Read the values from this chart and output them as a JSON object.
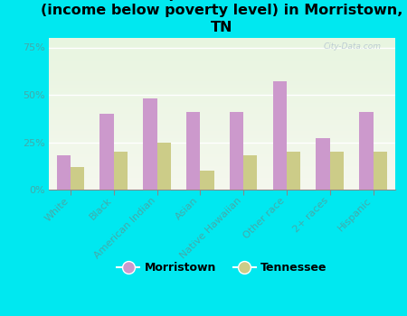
{
  "title": "Breakdown of poor residents within races\n(income below poverty level) in Morristown,\nTN",
  "categories": [
    "White",
    "Black",
    "American Indian",
    "Asian",
    "Native Hawaiian",
    "Other race",
    "2+ races",
    "Hispanic"
  ],
  "morristown": [
    18,
    40,
    48,
    41,
    41,
    57,
    27,
    41
  ],
  "tennessee": [
    12,
    20,
    25,
    10,
    18,
    20,
    20,
    20
  ],
  "morristown_color": "#cc99cc",
  "tennessee_color": "#cccc88",
  "background_outer": "#00e8f0",
  "plot_bg_top": "#e8f5e0",
  "plot_bg_bottom": "#f0f8e8",
  "yticks": [
    0,
    25,
    50,
    75
  ],
  "ytick_labels": [
    "0%",
    "25%",
    "50%",
    "75%"
  ],
  "watermark": "City-Data.com",
  "legend_morristown": "Morristown",
  "legend_tennessee": "Tennessee",
  "title_fontsize": 11.5,
  "tick_fontsize": 8,
  "legend_fontsize": 9,
  "axis_label_color": "#44aaaa",
  "ymax": 80
}
